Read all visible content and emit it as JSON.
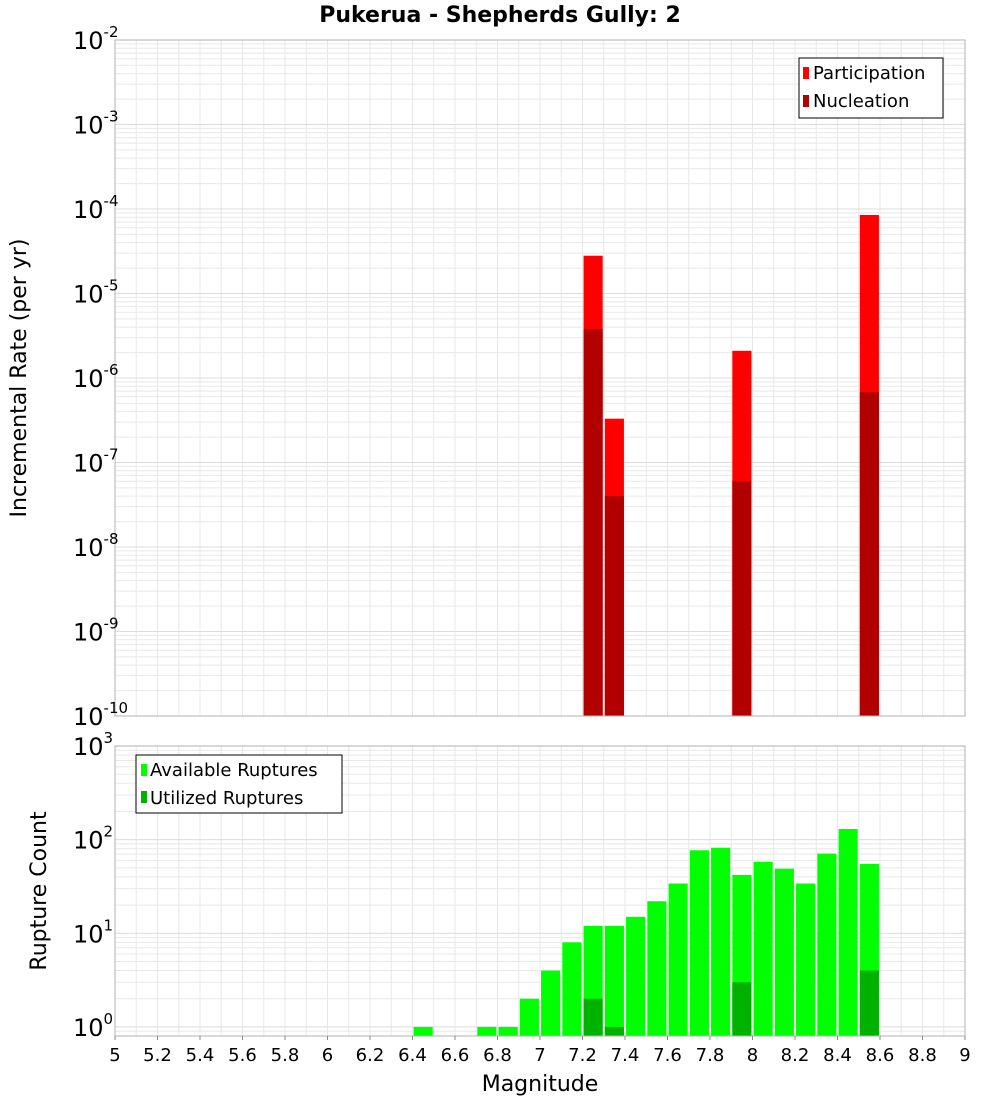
{
  "title": "Pukerua - Shepherds Gully: 2",
  "colors": {
    "participation": "#ff0000",
    "nucleation": "#b20000",
    "available": "#00ff00",
    "utilized": "#00b200",
    "grid": "#e8e8e8",
    "frame": "#b0b0b0"
  },
  "chart_data": [
    {
      "type": "bar",
      "title": "Pukerua - Shepherds Gully: 2",
      "xlabel": "",
      "ylabel": "Incremental Rate (per yr)",
      "yscale": "log",
      "xlim": [
        5,
        9
      ],
      "ylim": [
        1e-10,
        0.01
      ],
      "y_tick_exponents": [
        -10,
        -9,
        -8,
        -7,
        -6,
        -5,
        -4,
        -3,
        -2
      ],
      "y_tick_base": "10",
      "bar_width": 0.09,
      "legend": [
        "Participation",
        "Nucleation"
      ],
      "legend_position": "top-right",
      "series": [
        {
          "name": "Participation",
          "x": [
            7.25,
            7.35,
            7.95,
            8.55
          ],
          "values": [
            2.8e-05,
            3.3e-07,
            2.1e-06,
            8.5e-05
          ]
        },
        {
          "name": "Nucleation",
          "x": [
            7.25,
            7.35,
            7.95,
            8.55
          ],
          "values": [
            3.8e-06,
            4e-08,
            6e-08,
            6.8e-07
          ]
        }
      ]
    },
    {
      "type": "bar",
      "xlabel": "Magnitude",
      "ylabel": "Rupture Count",
      "yscale": "log",
      "xlim": [
        5,
        9
      ],
      "ylim": [
        0.8,
        1000
      ],
      "y_tick_exponents": [
        0,
        1,
        2,
        3
      ],
      "y_tick_base": "10",
      "x_ticks": [
        "5",
        "5.2",
        "5.4",
        "5.6",
        "5.8",
        "6",
        "6.2",
        "6.4",
        "6.6",
        "6.8",
        "7",
        "7.2",
        "7.4",
        "7.6",
        "7.8",
        "8",
        "8.2",
        "8.4",
        "8.6",
        "8.8",
        "9"
      ],
      "bar_width": 0.09,
      "legend": [
        "Available Ruptures",
        "Utilized Ruptures"
      ],
      "legend_position": "top-left",
      "series": [
        {
          "name": "Available Ruptures",
          "x": [
            6.45,
            6.75,
            6.85,
            6.95,
            7.05,
            7.15,
            7.25,
            7.35,
            7.45,
            7.55,
            7.65,
            7.75,
            7.85,
            7.95,
            8.05,
            8.15,
            8.25,
            8.35,
            8.45,
            8.55
          ],
          "values": [
            1,
            1,
            1,
            2,
            4,
            8,
            12,
            12,
            15,
            22,
            34,
            77,
            82,
            42,
            58,
            49,
            34,
            71,
            130,
            55
          ]
        },
        {
          "name": "Utilized Ruptures",
          "x": [
            7.25,
            7.35,
            7.95,
            8.55
          ],
          "values": [
            2,
            1,
            3,
            4
          ]
        }
      ]
    }
  ]
}
